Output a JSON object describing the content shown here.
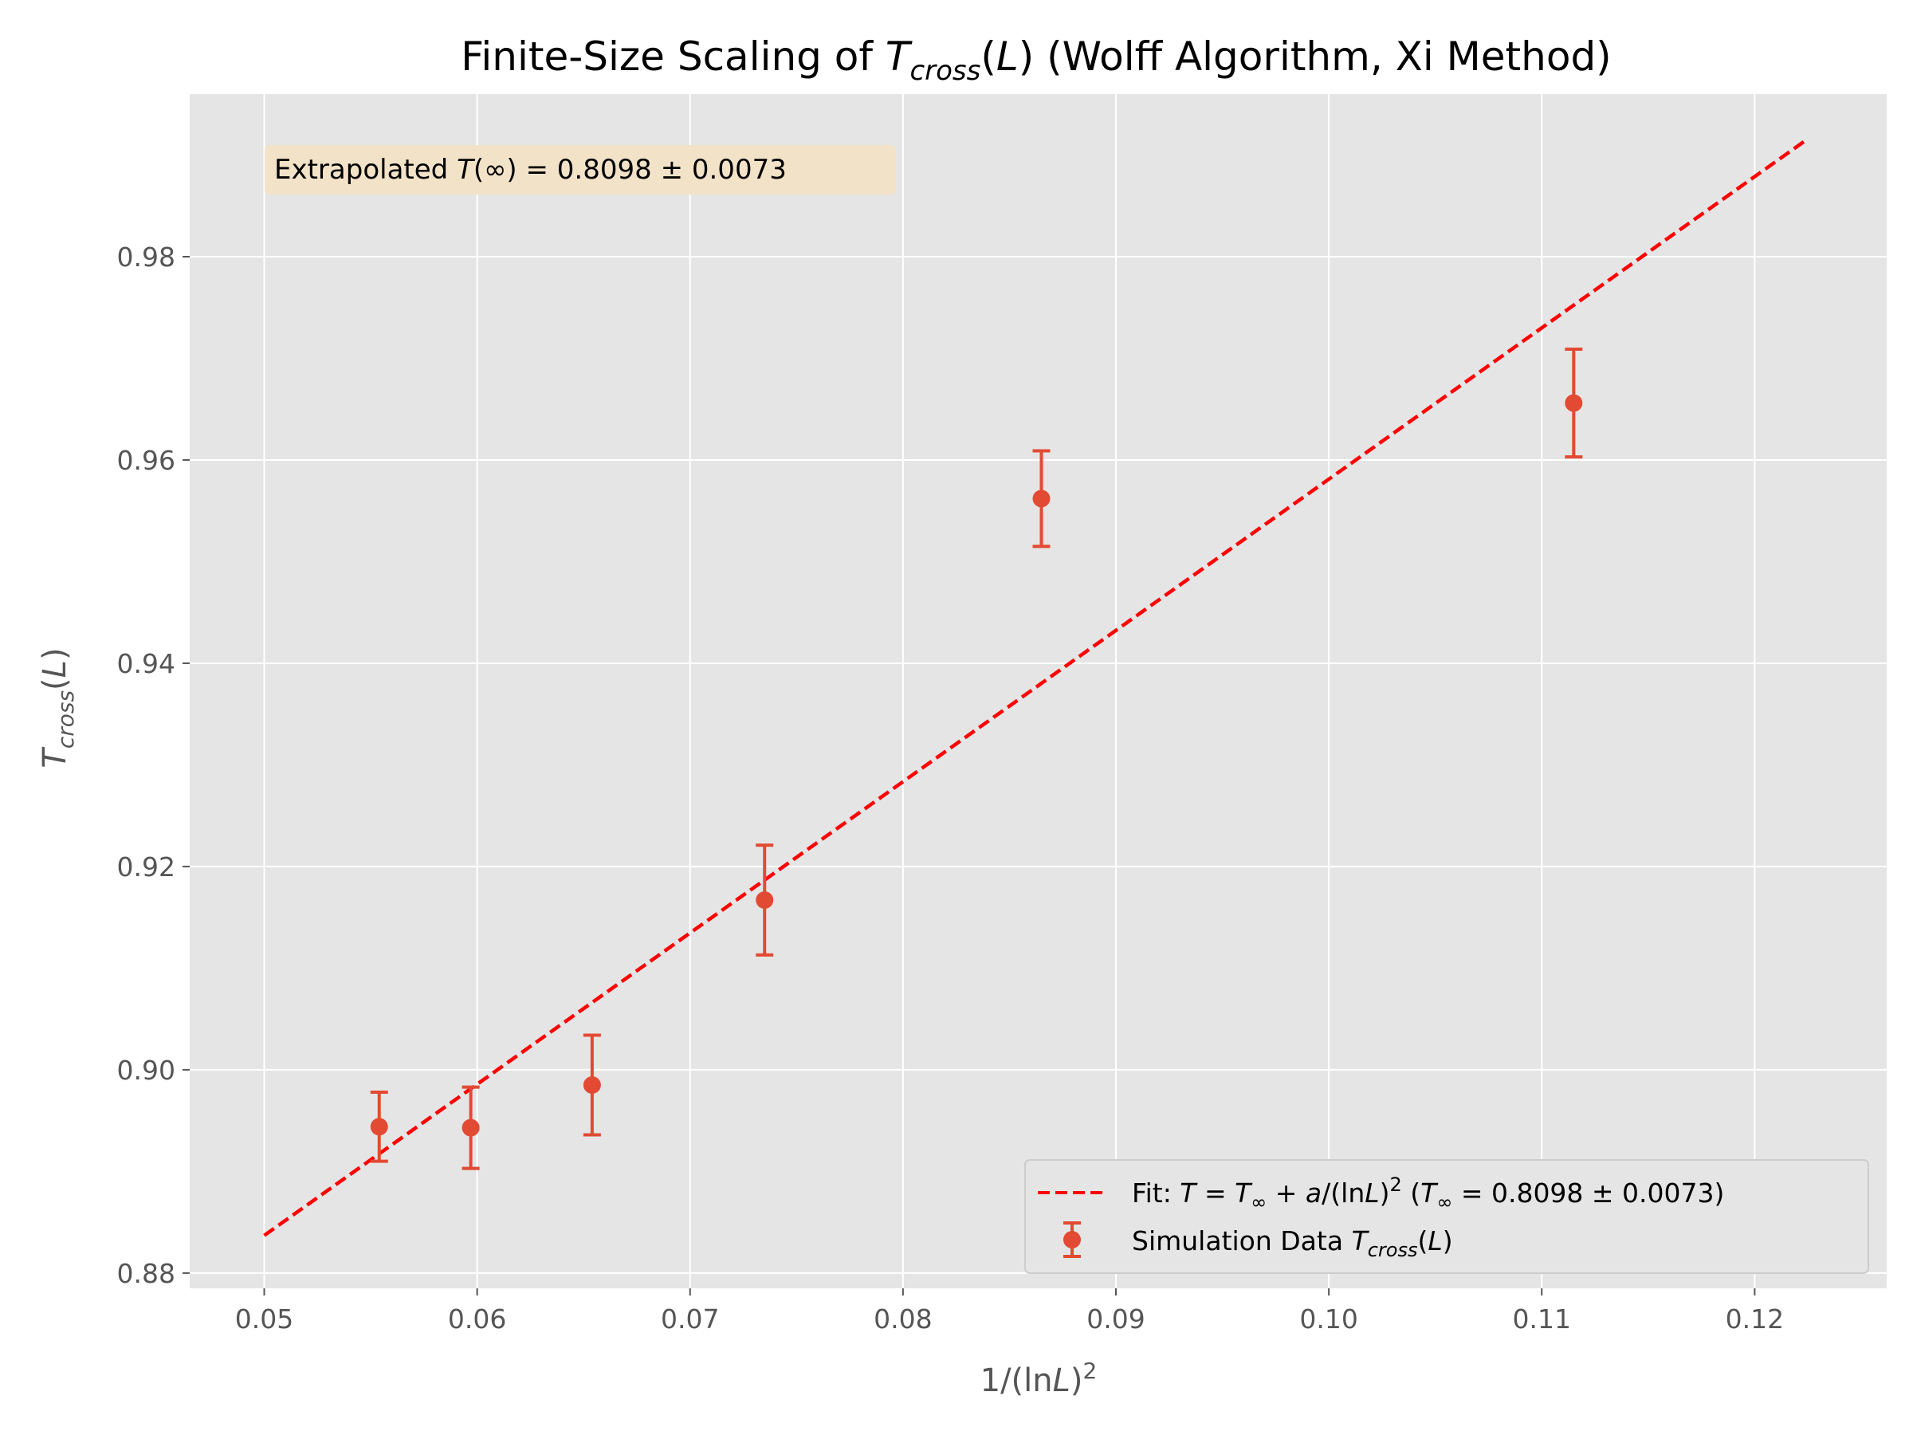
{
  "chart_data": {
    "type": "scatter",
    "title_parts": [
      "Finite-Size Scaling of ",
      "T",
      "cross",
      "(",
      "L",
      ") (Wolff Algorithm, Xi Method)"
    ],
    "xlabel_parts": [
      "1/(ln",
      "L",
      ")",
      "2"
    ],
    "ylabel_parts": [
      "T",
      "cross",
      "(",
      "L",
      ")"
    ],
    "xlim": [
      0.0465,
      0.1262
    ],
    "ylim": [
      0.8785,
      0.996
    ],
    "x_ticks": [
      "0.05",
      "0.06",
      "0.07",
      "0.08",
      "0.09",
      "0.10",
      "0.11",
      "0.12"
    ],
    "y_ticks": [
      "0.88",
      "0.90",
      "0.92",
      "0.94",
      "0.96",
      "0.98"
    ],
    "grid": true,
    "legend_position": "lower-right",
    "series": [
      {
        "name": "Simulation Data T_cross(L)",
        "type": "errorbar",
        "color": "#E24A33",
        "x": [
          0.0554,
          0.0597,
          0.0654,
          0.0735,
          0.0865,
          0.1115
        ],
        "y": [
          0.8944,
          0.8943,
          0.8985,
          0.9167,
          0.9562,
          0.9656
        ],
        "yerr": [
          0.0034,
          0.004,
          0.0049,
          0.0054,
          0.0047,
          0.0053
        ]
      },
      {
        "name": "Fit: T = T∞ + a/(ln L)^2 (T∞ = 0.8098 ± 0.0073)",
        "type": "line",
        "style": "dashed",
        "color": "#FF0000",
        "x": [
          0.05,
          0.1225
        ],
        "y": [
          0.8837,
          0.9916
        ]
      }
    ],
    "legend": {
      "fit_parts": [
        "Fit: ",
        "T",
        " = ",
        "T",
        "∞",
        " + ",
        "a",
        "/(ln",
        "L",
        ")",
        "2",
        " (",
        "T",
        "∞",
        " = 0.8098 ± 0.0073)"
      ],
      "data_parts": [
        "Simulation Data ",
        "T",
        "cross",
        "(",
        "L",
        ")"
      ]
    },
    "annotation_parts": [
      "Extrapolated ",
      "T",
      "(∞) = 0.8098 ± 0.0073"
    ]
  },
  "colors": {
    "plot_background": "#E5E5E5",
    "grid": "#FFFFFF",
    "annotation_box": "#F2E2C8"
  }
}
